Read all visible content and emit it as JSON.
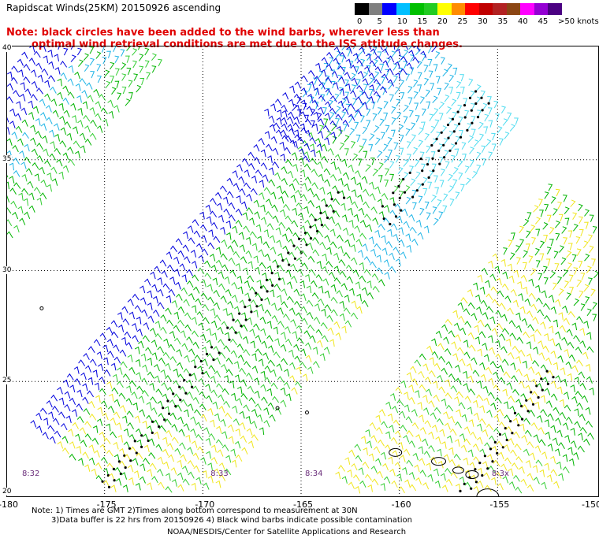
{
  "title": "Rapidscat Winds(25KM) 20150926 ascending",
  "note_line1": "Note: black circles have been added to the wind barbs, wherever less than",
  "note_line2": "optimal wind retrieval conditions are met due to the ISS attitude changes.",
  "legend": {
    "units": ">50 knots",
    "ticks": [
      "0",
      "5",
      "10",
      "15",
      "20",
      "25",
      "30",
      "35",
      "40",
      "45"
    ],
    "colors": [
      "#000000",
      "#7f7f7f",
      "#0000ff",
      "#00bfff",
      "#00c000",
      "#22cc22",
      "#ffff00",
      "#ff8c00",
      "#ff0000",
      "#c00000",
      "#b22222",
      "#8b4513",
      "#ff00ff",
      "#9400d3",
      "#4b0082"
    ]
  },
  "map": {
    "lat_labels": [
      "40",
      "35",
      "30",
      "25",
      "20"
    ],
    "lon_labels": [
      "-180",
      "-175",
      "-170",
      "-165",
      "-160",
      "-155",
      "-150"
    ],
    "lat_range": [
      20,
      40
    ],
    "lon_range": [
      -180,
      -150
    ],
    "time_labels": [
      {
        "text": "8:32",
        "lon": -179.2,
        "lat": 20.8
      },
      {
        "text": "8:33",
        "lon": -169.6,
        "lat": 20.8
      },
      {
        "text": "8:34",
        "lon": -164.8,
        "lat": 20.8
      },
      {
        "text": "8:3x",
        "lon": -155.3,
        "lat": 20.8
      }
    ],
    "barb_colors": {
      "blue": "#0000dd",
      "cyan": "#1eb4e6",
      "lightcyan": "#50dcf0",
      "green": "#00b400",
      "lightgreen": "#32cd32",
      "yellow": "#f0e61e",
      "black": "#000000"
    },
    "land_color": "#000000",
    "grid_color": "#000000"
  },
  "footer": {
    "line1": "Note: 1) Times are GMT 2)Times along bottom correspond to measurement at 30N",
    "line2": "3)Data buffer is 22 hrs from 20150926 4) Black wind barbs indicate possible contamination",
    "line3": "NOAA/NESDIS/Center for Satellite Applications and Research"
  }
}
